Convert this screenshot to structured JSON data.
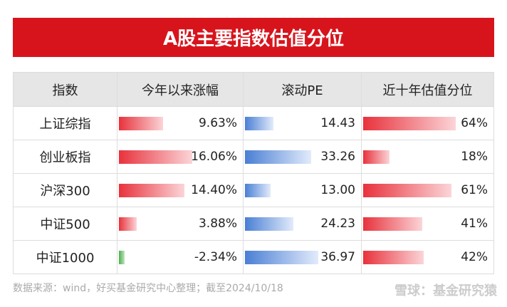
{
  "title": "A股主要指数估值分位",
  "table": {
    "columns": [
      "指数",
      "今年以来涨幅",
      "滚动PE",
      "近十年估值分位"
    ],
    "rows": [
      {
        "name": "上证综指",
        "change": 9.63,
        "change_label": "9.63%",
        "pe": 14.43,
        "pe_label": "14.43",
        "percentile": 64,
        "percentile_label": "64%"
      },
      {
        "name": "创业板指",
        "change": 16.06,
        "change_label": "16.06%",
        "pe": 33.26,
        "pe_label": "33.26",
        "percentile": 18,
        "percentile_label": "18%"
      },
      {
        "name": "沪深300",
        "change": 14.4,
        "change_label": "14.40%",
        "pe": 13.0,
        "pe_label": "13.00",
        "percentile": 61,
        "percentile_label": "61%"
      },
      {
        "name": "中证500",
        "change": 3.88,
        "change_label": "3.88%",
        "pe": 24.23,
        "pe_label": "24.23",
        "percentile": 41,
        "percentile_label": "41%"
      },
      {
        "name": "中证1000",
        "change": -2.34,
        "change_label": "-2.34%",
        "pe": 36.97,
        "pe_label": "36.97",
        "percentile": 42,
        "percentile_label": "42%"
      }
    ]
  },
  "source": "数据来源：wind，好买基金研究中心整理；截至2024/10/18",
  "watermark": "雪球：基金研究猿"
}
